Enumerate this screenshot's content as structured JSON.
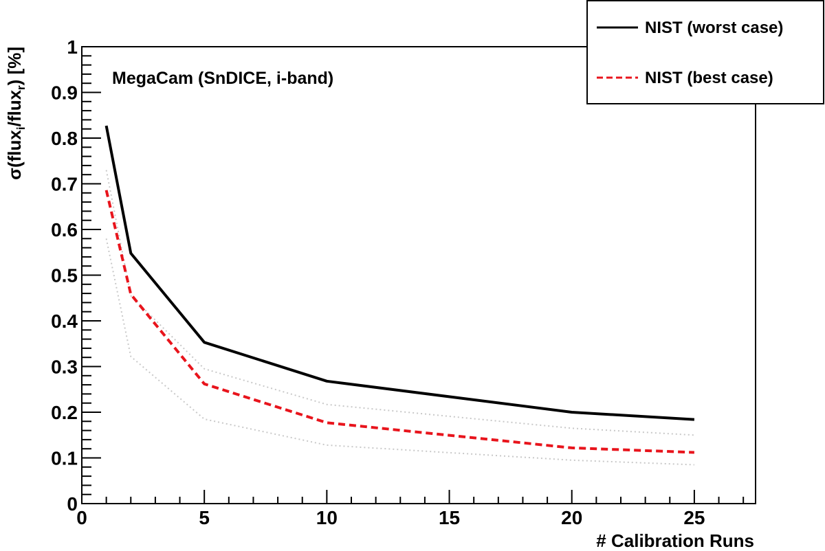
{
  "chart_data": {
    "type": "line",
    "annotation": "MegaCam (SnDICE, i-band)",
    "xlabel": "# Calibration Runs",
    "ylabel": {
      "main": "σ(flux",
      "sub1": "i",
      "mid": "/flux",
      "sub2": "r",
      "end": ") [%]"
    },
    "xlim": [
      0,
      27.5
    ],
    "ylim": [
      0,
      1
    ],
    "x_ticks": [
      0,
      5,
      10,
      15,
      20,
      25
    ],
    "y_ticks": [
      0,
      0.1,
      0.2,
      0.3,
      0.4,
      0.5,
      0.6,
      0.7,
      0.8,
      0.9,
      1
    ],
    "x_tick_labels": [
      "0",
      "5",
      "10",
      "15",
      "20",
      "25"
    ],
    "y_tick_labels": [
      "0",
      "0.1",
      "0.2",
      "0.3",
      "0.4",
      "0.5",
      "0.6",
      "0.7",
      "0.8",
      "0.9",
      "1"
    ],
    "grid": false,
    "legend_position": "top-right",
    "x": [
      1,
      2,
      5,
      10,
      20,
      25
    ],
    "series": [
      {
        "name": "NIST (worst case)",
        "values": [
          0.827,
          0.548,
          0.353,
          0.268,
          0.2,
          0.184
        ],
        "color": "#000000",
        "style": "solid",
        "legend": true
      },
      {
        "name": "NIST (best case)",
        "values": [
          0.686,
          0.458,
          0.262,
          0.177,
          0.122,
          0.112
        ],
        "color": "#e8141c",
        "style": "dashed",
        "legend": true
      },
      {
        "values": [
          0.73,
          0.455,
          0.295,
          0.217,
          0.165,
          0.15
        ],
        "color": "#c8c8c8",
        "style": "dotted",
        "legend": false
      },
      {
        "values": [
          0.58,
          0.322,
          0.185,
          0.128,
          0.095,
          0.085
        ],
        "color": "#c8c8c8",
        "style": "dotted",
        "legend": false
      }
    ]
  }
}
